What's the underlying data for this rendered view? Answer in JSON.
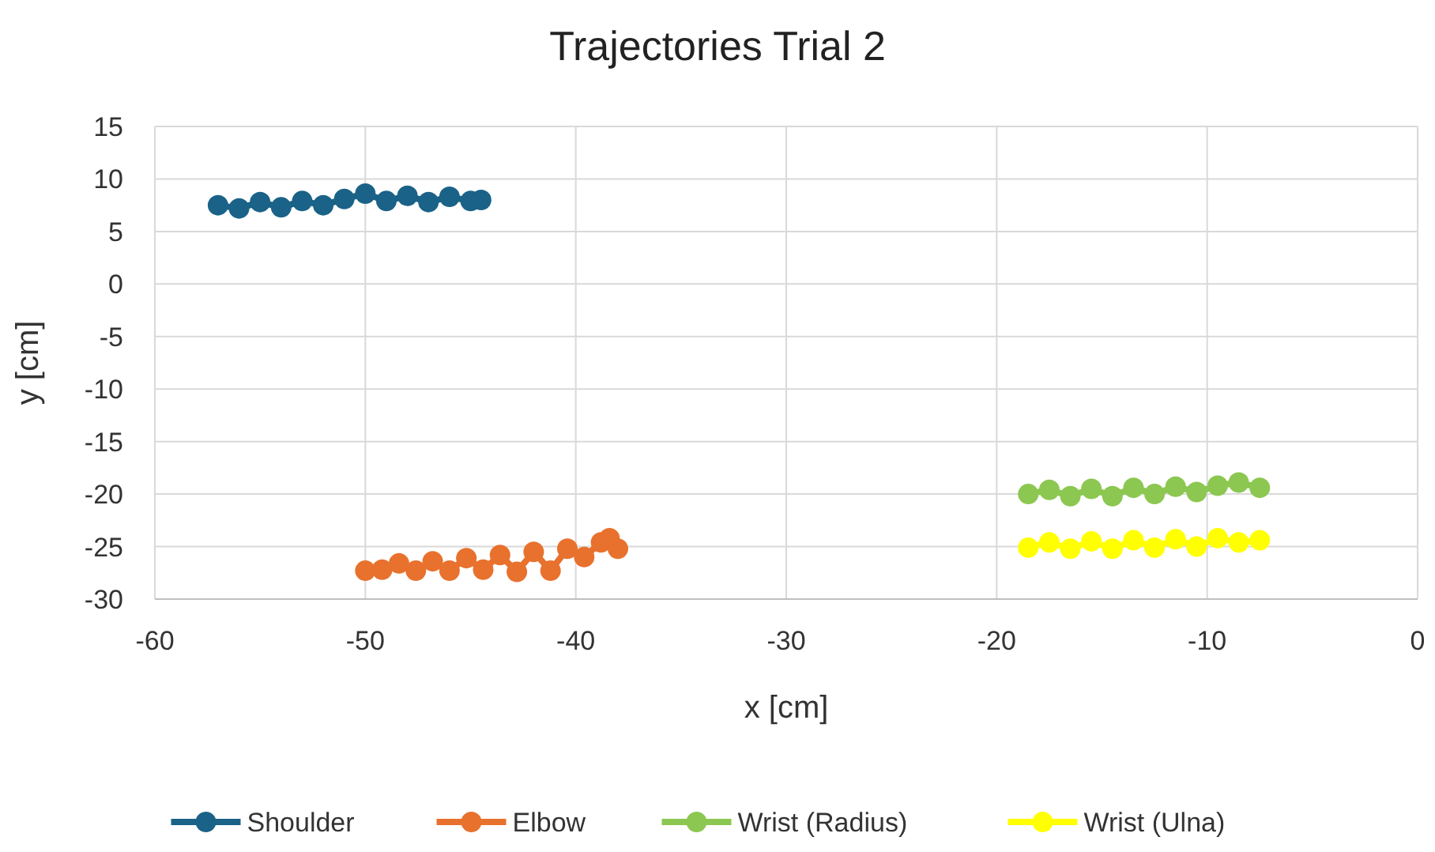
{
  "chart_data": {
    "type": "line",
    "title": "Trajectories Trial 2",
    "xlabel": "x [cm]",
    "ylabel": "y [cm]",
    "xlim": [
      -60,
      0
    ],
    "ylim": [
      -30,
      15
    ],
    "xticks": [
      -60,
      -50,
      -40,
      -30,
      -20,
      -10,
      0
    ],
    "yticks": [
      -30,
      -25,
      -20,
      -15,
      -10,
      -5,
      0,
      5,
      10,
      15
    ],
    "grid": true,
    "legend": "bottom",
    "marker": "circle",
    "line_style": "solid",
    "series": [
      {
        "name": "Shoulder",
        "color": "#1a6287",
        "x": [
          -57,
          -56,
          -55,
          -54,
          -53,
          -52,
          -51,
          -50,
          -49,
          -48,
          -47,
          -46,
          -45,
          -44.5
        ],
        "values": [
          7.5,
          7.2,
          7.8,
          7.3,
          7.9,
          7.5,
          8.1,
          8.6,
          7.9,
          8.4,
          7.8,
          8.3,
          7.9,
          8
        ]
      },
      {
        "name": "Elbow",
        "color": "#e8712d",
        "x": [
          -50,
          -49.2,
          -48.4,
          -47.6,
          -46.8,
          -46,
          -45.2,
          -44.4,
          -43.6,
          -42.8,
          -42,
          -41.2,
          -40.4,
          -39.6,
          -38.8,
          -38.4,
          -38
        ],
        "values": [
          -27.3,
          -27.2,
          -26.6,
          -27.3,
          -26.4,
          -27.3,
          -26.1,
          -27.2,
          -25.8,
          -27.4,
          -25.5,
          -27.3,
          -25.2,
          -26,
          -24.6,
          -24.2,
          -25.2
        ]
      },
      {
        "name": "Wrist (Radius)",
        "color": "#8cc751",
        "x": [
          -18.5,
          -17.5,
          -16.5,
          -15.5,
          -14.5,
          -13.5,
          -12.5,
          -11.5,
          -10.5,
          -9.5,
          -8.5,
          -7.5
        ],
        "values": [
          -20,
          -19.6,
          -20.2,
          -19.5,
          -20.2,
          -19.4,
          -20,
          -19.3,
          -19.8,
          -19.2,
          -18.9,
          -19.4
        ]
      },
      {
        "name": "Wrist (Ulna)",
        "color": "#ffff00",
        "x": [
          -18.5,
          -17.5,
          -16.5,
          -15.5,
          -14.5,
          -13.5,
          -12.5,
          -11.5,
          -10.5,
          -9.5,
          -8.5,
          -7.5
        ],
        "values": [
          -25.1,
          -24.6,
          -25.2,
          -24.5,
          -25.2,
          -24.4,
          -25.1,
          -24.3,
          -25,
          -24.2,
          -24.6,
          -24.4
        ]
      }
    ]
  }
}
